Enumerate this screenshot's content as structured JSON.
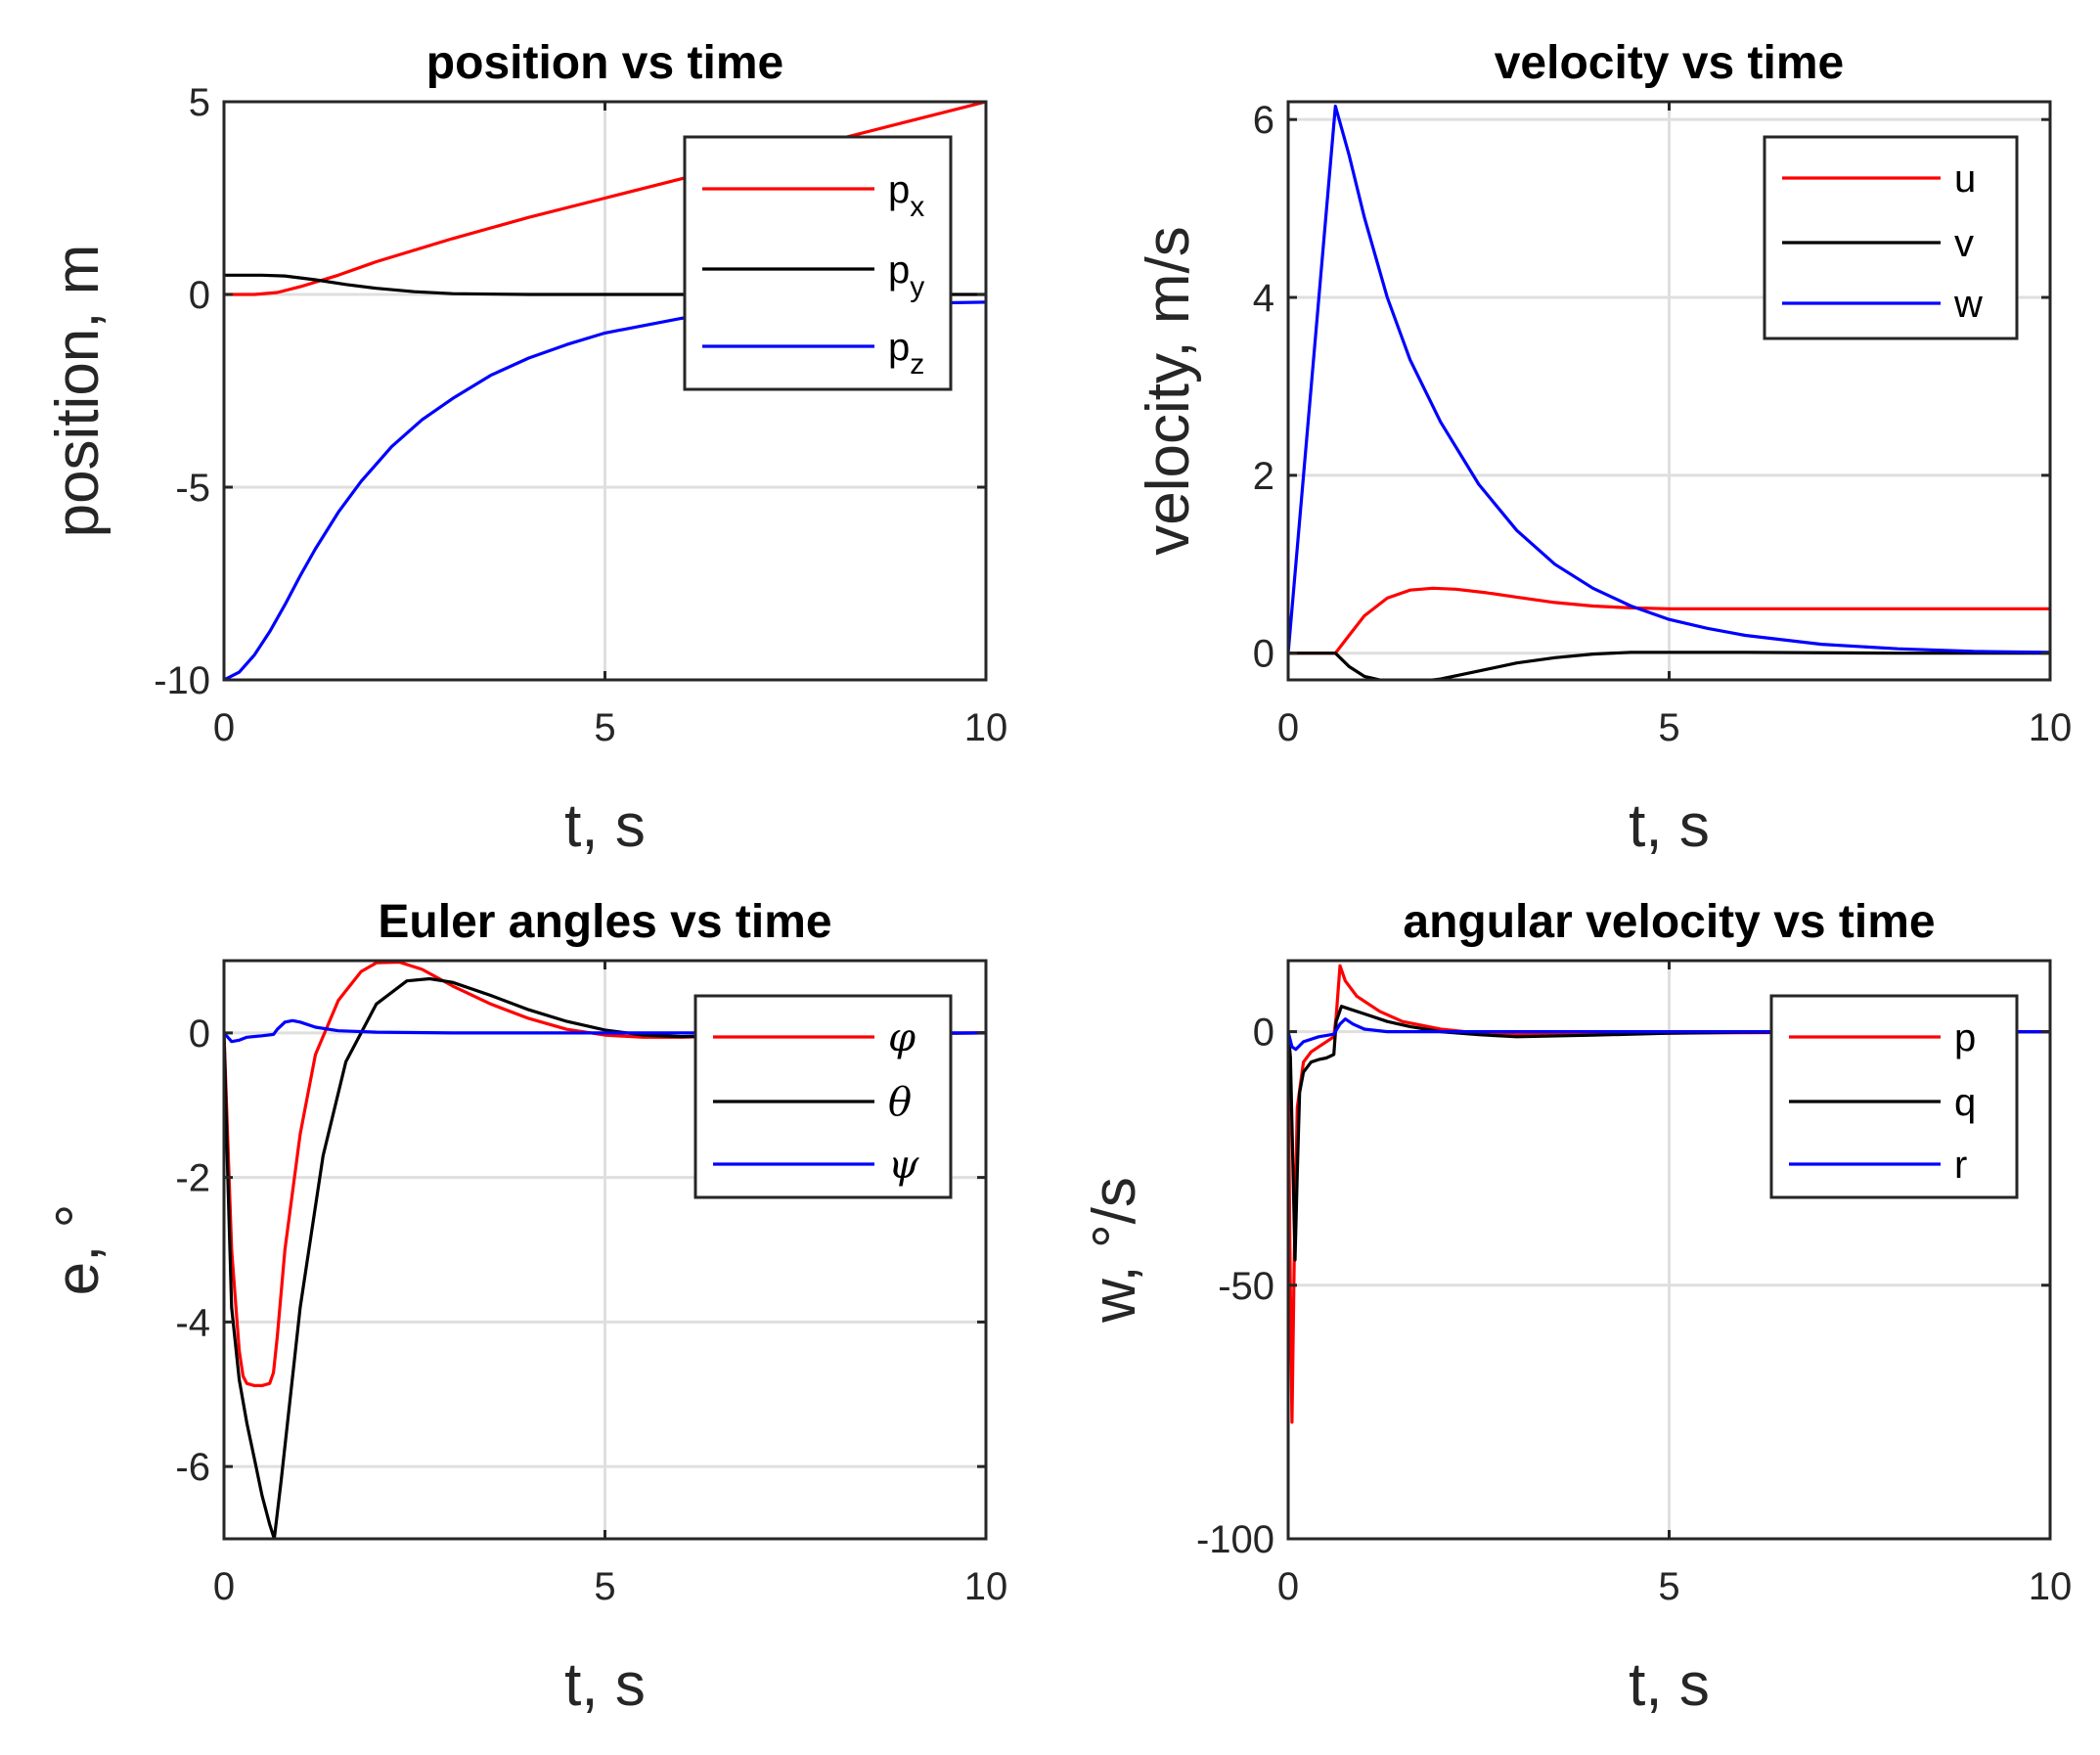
{
  "chart_data": [
    {
      "type": "line",
      "title": "position vs time",
      "xlabel": "t, s",
      "ylabel": "position, m",
      "xlim": [
        0,
        10
      ],
      "ylim": [
        -10,
        5
      ],
      "xticks": [
        0,
        5,
        10
      ],
      "yticks": [
        -10,
        -5,
        0,
        5
      ],
      "grid": true,
      "legend_position": "top-right",
      "series": [
        {
          "name": "p",
          "sub": "x",
          "color": "#ff0000",
          "x": [
            0,
            0.4,
            0.7,
            1.0,
            1.5,
            2.0,
            3.0,
            4.0,
            5.0,
            6.0,
            7.0,
            8.0,
            9.0,
            10.0
          ],
          "y": [
            0,
            0,
            0.05,
            0.2,
            0.5,
            0.85,
            1.45,
            2.0,
            2.5,
            3.0,
            3.5,
            4.0,
            4.5,
            5.0
          ]
        },
        {
          "name": "p",
          "sub": "y",
          "color": "#000000",
          "x": [
            0,
            0.5,
            0.8,
            1.2,
            1.6,
            2.0,
            2.5,
            3.0,
            4.0,
            6.0,
            8.0,
            10.0
          ],
          "y": [
            0.5,
            0.5,
            0.48,
            0.38,
            0.26,
            0.16,
            0.07,
            0.02,
            0.0,
            0.0,
            0.0,
            0.0
          ]
        },
        {
          "name": "p",
          "sub": "z",
          "color": "#0000ff",
          "x": [
            0,
            0.2,
            0.4,
            0.6,
            0.8,
            1.0,
            1.2,
            1.5,
            1.8,
            2.2,
            2.6,
            3.0,
            3.5,
            4.0,
            4.5,
            5.0,
            6.0,
            7.0,
            8.0,
            9.0,
            10.0
          ],
          "y": [
            -10,
            -9.8,
            -9.35,
            -8.75,
            -8.05,
            -7.3,
            -6.6,
            -5.65,
            -4.85,
            -3.95,
            -3.25,
            -2.7,
            -2.1,
            -1.65,
            -1.3,
            -1.0,
            -0.62,
            -0.42,
            -0.3,
            -0.23,
            -0.2
          ]
        }
      ]
    },
    {
      "type": "line",
      "title": "velocity vs time",
      "xlabel": "t, s",
      "ylabel": "velocity, m/s",
      "xlim": [
        0,
        10
      ],
      "ylim": [
        -0.3,
        6.2
      ],
      "xticks": [
        0,
        5,
        10
      ],
      "yticks": [
        0,
        2,
        4,
        6
      ],
      "grid": true,
      "legend_position": "top-right",
      "series": [
        {
          "name": "u",
          "color": "#ff0000",
          "x": [
            0,
            0.62,
            0.8,
            1.0,
            1.3,
            1.6,
            1.9,
            2.2,
            2.6,
            3.0,
            3.5,
            4.0,
            4.5,
            5.0,
            6.0,
            7.0,
            8.0,
            10.0
          ],
          "y": [
            0,
            0,
            0.2,
            0.42,
            0.62,
            0.71,
            0.73,
            0.72,
            0.68,
            0.63,
            0.57,
            0.53,
            0.51,
            0.5,
            0.5,
            0.5,
            0.5,
            0.5
          ]
        },
        {
          "name": "v",
          "color": "#000000",
          "x": [
            0,
            0.62,
            0.8,
            1.0,
            1.3,
            1.6,
            2.0,
            2.5,
            3.0,
            3.5,
            4.0,
            4.5,
            5.0,
            6.0,
            8.0,
            10.0
          ],
          "y": [
            0,
            0,
            -0.15,
            -0.26,
            -0.32,
            -0.33,
            -0.29,
            -0.2,
            -0.11,
            -0.05,
            -0.01,
            0.01,
            0.01,
            0.01,
            0.0,
            0.0
          ]
        },
        {
          "name": "w",
          "color": "#0000ff",
          "x": [
            0,
            0.62,
            0.8,
            1.0,
            1.3,
            1.6,
            2.0,
            2.5,
            3.0,
            3.5,
            4.0,
            4.5,
            5.0,
            5.5,
            6.0,
            7.0,
            8.0,
            9.0,
            10.0
          ],
          "y": [
            0,
            6.15,
            5.6,
            4.9,
            4.0,
            3.3,
            2.6,
            1.9,
            1.38,
            1.0,
            0.73,
            0.53,
            0.38,
            0.28,
            0.2,
            0.1,
            0.05,
            0.02,
            0.01
          ]
        }
      ]
    },
    {
      "type": "line",
      "title": "Euler angles vs time",
      "xlabel": "t, s",
      "ylabel": "e, °",
      "xlim": [
        0,
        10
      ],
      "ylim": [
        -7,
        1
      ],
      "xticks": [
        0,
        5,
        10
      ],
      "yticks": [
        -6,
        -4,
        -2,
        0
      ],
      "grid": true,
      "legend_position": "top-right",
      "series": [
        {
          "name": "φ",
          "color": "#ff0000",
          "x": [
            0,
            0.05,
            0.1,
            0.2,
            0.25,
            0.3,
            0.4,
            0.5,
            0.6,
            0.65,
            0.7,
            0.8,
            1.0,
            1.2,
            1.5,
            1.8,
            2.0,
            2.3,
            2.6,
            3.0,
            3.5,
            4.0,
            4.5,
            5.0,
            5.5,
            6.0,
            7.0,
            8.0,
            10.0
          ],
          "y": [
            0,
            -1.5,
            -3.0,
            -4.4,
            -4.75,
            -4.85,
            -4.88,
            -4.88,
            -4.85,
            -4.7,
            -4.2,
            -3.0,
            -1.4,
            -0.3,
            0.45,
            0.85,
            0.97,
            0.98,
            0.88,
            0.65,
            0.4,
            0.2,
            0.05,
            -0.03,
            -0.06,
            -0.06,
            -0.03,
            -0.01,
            0.0
          ]
        },
        {
          "name": "θ",
          "color": "#000000",
          "x": [
            0,
            0.05,
            0.1,
            0.2,
            0.3,
            0.4,
            0.5,
            0.6,
            0.66,
            0.75,
            1.0,
            1.3,
            1.6,
            2.0,
            2.4,
            2.7,
            3.0,
            3.5,
            4.0,
            4.5,
            5.0,
            5.5,
            6.0,
            7.0,
            8.0,
            10.0
          ],
          "y": [
            0,
            -2.0,
            -3.8,
            -4.8,
            -5.4,
            -5.9,
            -6.4,
            -6.8,
            -7.0,
            -6.2,
            -3.8,
            -1.7,
            -0.4,
            0.4,
            0.72,
            0.75,
            0.7,
            0.52,
            0.32,
            0.16,
            0.04,
            -0.03,
            -0.05,
            -0.04,
            -0.02,
            0.0
          ]
        },
        {
          "name": "ψ",
          "color": "#0000ff",
          "x": [
            0,
            0.1,
            0.2,
            0.3,
            0.5,
            0.65,
            0.7,
            0.8,
            0.9,
            1.0,
            1.2,
            1.5,
            2.0,
            3.0,
            5.0,
            10.0
          ],
          "y": [
            0,
            -0.12,
            -0.1,
            -0.06,
            -0.04,
            -0.02,
            0.05,
            0.15,
            0.17,
            0.15,
            0.08,
            0.03,
            0.01,
            0.0,
            0.0,
            0.0
          ]
        }
      ]
    },
    {
      "type": "line",
      "title": "angular velocity vs time",
      "xlabel": "t, s",
      "ylabel": "w, °/s",
      "xlim": [
        0,
        10
      ],
      "ylim": [
        -100,
        14
      ],
      "xticks": [
        0,
        5,
        10
      ],
      "yticks": [
        -100,
        -50,
        0
      ],
      "grid": true,
      "legend_position": "top-right",
      "series": [
        {
          "name": "p",
          "color": "#ff0000",
          "x": [
            0,
            0.02,
            0.05,
            0.08,
            0.12,
            0.2,
            0.3,
            0.4,
            0.5,
            0.6,
            0.63,
            0.68,
            0.75,
            0.9,
            1.2,
            1.5,
            2.0,
            2.5,
            3.0,
            4.0,
            6.0,
            10.0
          ],
          "y": [
            0,
            -40,
            -77,
            -45,
            -15,
            -6,
            -4,
            -3,
            -2,
            -1,
            3,
            13,
            10,
            7,
            4,
            2,
            0.5,
            -0.3,
            -0.6,
            -0.4,
            -0.2,
            0.0
          ]
        },
        {
          "name": "q",
          "color": "#000000",
          "x": [
            0,
            0.03,
            0.06,
            0.09,
            0.12,
            0.15,
            0.2,
            0.3,
            0.4,
            0.5,
            0.6,
            0.63,
            0.7,
            0.8,
            1.0,
            1.3,
            1.6,
            2.0,
            2.5,
            3.0,
            4.0,
            5.0,
            6.0,
            10.0
          ],
          "y": [
            0,
            -5,
            -25,
            -45,
            -28,
            -12,
            -8,
            -6,
            -5.5,
            -5.2,
            -4.5,
            2,
            5,
            4.5,
            3.5,
            2,
            1,
            0,
            -0.6,
            -1,
            -0.7,
            -0.3,
            -0.1,
            0.0
          ]
        },
        {
          "name": "r",
          "color": "#0000ff",
          "x": [
            0,
            0.05,
            0.1,
            0.2,
            0.4,
            0.6,
            0.68,
            0.75,
            0.85,
            1.0,
            1.3,
            2.0,
            3.0,
            10.0
          ],
          "y": [
            0,
            -3,
            -3.5,
            -2,
            -1,
            -0.5,
            1.5,
            2.5,
            1.5,
            0.5,
            0.0,
            0.0,
            0.0,
            0.0
          ]
        }
      ]
    }
  ]
}
